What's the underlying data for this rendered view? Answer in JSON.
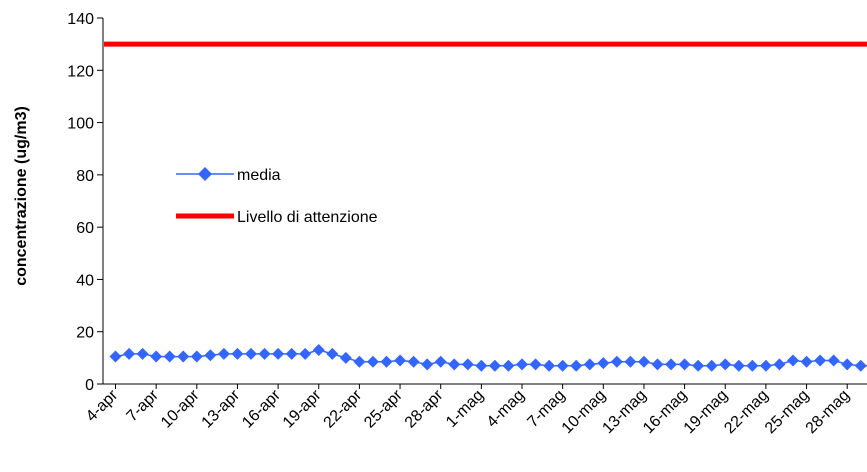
{
  "chart_data": {
    "type": "line",
    "title": "",
    "xlabel": "",
    "ylabel": "concentrazione (ug/m3)",
    "ylim": [
      0,
      140
    ],
    "yticks": [
      0,
      20,
      40,
      60,
      80,
      100,
      120,
      140
    ],
    "grid": false,
    "legend_placement": "center-left",
    "x_tick_labels": [
      "4-apr",
      "7-apr",
      "10-apr",
      "13-apr",
      "16-apr",
      "19-apr",
      "22-apr",
      "25-apr",
      "28-apr",
      "1-mag",
      "4-mag",
      "7-mag",
      "10-mag",
      "13-mag",
      "16-mag",
      "19-mag",
      "22-mag",
      "25-mag",
      "28-mag"
    ],
    "x": [
      "4-apr",
      "5-apr",
      "6-apr",
      "7-apr",
      "8-apr",
      "9-apr",
      "10-apr",
      "11-apr",
      "12-apr",
      "13-apr",
      "14-apr",
      "15-apr",
      "16-apr",
      "17-apr",
      "18-apr",
      "19-apr",
      "20-apr",
      "21-apr",
      "22-apr",
      "23-apr",
      "24-apr",
      "25-apr",
      "26-apr",
      "27-apr",
      "28-apr",
      "29-apr",
      "30-apr",
      "1-mag",
      "2-mag",
      "3-mag",
      "4-mag",
      "5-mag",
      "6-mag",
      "7-mag",
      "8-mag",
      "9-mag",
      "10-mag",
      "11-mag",
      "12-mag",
      "13-mag",
      "14-mag",
      "15-mag",
      "16-mag",
      "17-mag",
      "18-mag",
      "19-mag",
      "20-mag",
      "21-mag",
      "22-mag",
      "23-mag",
      "24-mag",
      "25-mag",
      "26-mag",
      "27-mag",
      "28-mag",
      "29-mag",
      "30-mag",
      "31-mag"
    ],
    "series": [
      {
        "name": "media",
        "color": "#3366ff",
        "marker": "diamond",
        "values": [
          10.5,
          11.5,
          11.5,
          10.5,
          10.5,
          10.5,
          10.5,
          11,
          11.5,
          11.5,
          11.5,
          11.5,
          11.5,
          11.5,
          11.5,
          13,
          11.5,
          10,
          8.5,
          8.5,
          8.5,
          9,
          8.5,
          7.5,
          8.5,
          7.5,
          7.5,
          7,
          7,
          7,
          7.5,
          7.5,
          7,
          7,
          7,
          7.5,
          8,
          8.5,
          8.5,
          8.5,
          7.5,
          7.5,
          7.5,
          7,
          7,
          7.5,
          7,
          7,
          7,
          7.5,
          9,
          8.5,
          9,
          9,
          7.5,
          7,
          7,
          7.5
        ]
      },
      {
        "name": "Livello di attenzione",
        "color": "#ff0000",
        "marker": "none",
        "constant": 130
      }
    ]
  }
}
